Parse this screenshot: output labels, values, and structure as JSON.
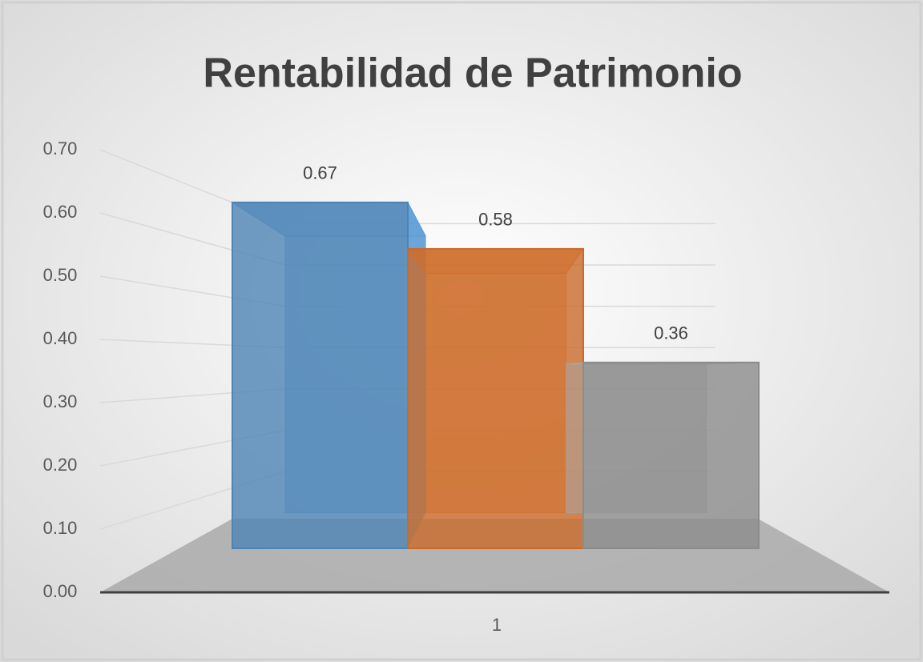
{
  "chart_data": {
    "type": "bar3d",
    "title": "Rentabilidad de Patrimonio",
    "categories": [
      "1"
    ],
    "series": [
      {
        "color": "#5b9bd5",
        "values": [
          0.67
        ]
      },
      {
        "color": "#ed7d31",
        "values": [
          0.58
        ]
      },
      {
        "color": "#a5a5a5",
        "values": [
          0.36
        ]
      }
    ],
    "ylim": [
      0,
      0.7
    ],
    "yticks": [
      {
        "value": 0,
        "label": "0.00"
      },
      {
        "value": 0.1,
        "label": "0.10"
      },
      {
        "value": 0.2,
        "label": "0.20"
      },
      {
        "value": 0.3,
        "label": "0.30"
      },
      {
        "value": 0.4,
        "label": "0.40"
      },
      {
        "value": 0.5,
        "label": "0.50"
      },
      {
        "value": 0.6,
        "label": "0.60"
      },
      {
        "value": 0.7,
        "label": "0.70"
      }
    ],
    "grid": true
  }
}
